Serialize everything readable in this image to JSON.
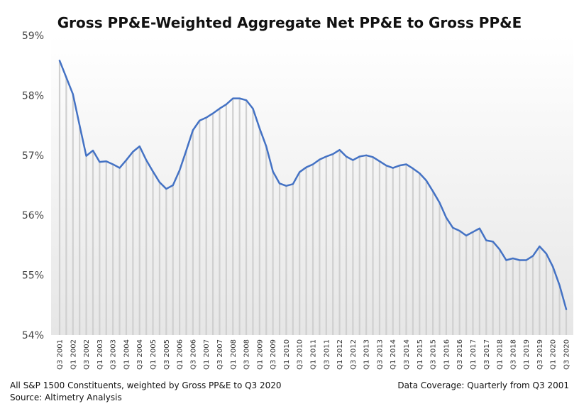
{
  "chart_data": {
    "type": "line",
    "title": "Gross PP&E-Weighted Aggregate Net PP&E to Gross PP&E",
    "xlabel": "",
    "ylabel": "",
    "ylim": [
      54,
      59
    ],
    "yticks": [
      "54%",
      "55%",
      "56%",
      "57%",
      "58%",
      "59%"
    ],
    "ytick_values": [
      54,
      55,
      56,
      57,
      58,
      59
    ],
    "grid": false,
    "line_color": "#4472C4",
    "drop_line_color": "#d0d0d0",
    "x": [
      "Q3 2001",
      "Q4 2001",
      "Q1 2002",
      "Q2 2002",
      "Q3 2002",
      "Q4 2002",
      "Q1 2003",
      "Q2 2003",
      "Q3 2003",
      "Q4 2003",
      "Q1 2004",
      "Q2 2004",
      "Q3 2004",
      "Q4 2004",
      "Q1 2005",
      "Q2 2005",
      "Q3 2005",
      "Q4 2005",
      "Q1 2006",
      "Q2 2006",
      "Q3 2006",
      "Q4 2006",
      "Q1 2007",
      "Q2 2007",
      "Q3 2007",
      "Q4 2007",
      "Q1 2008",
      "Q2 2008",
      "Q3 2008",
      "Q4 2008",
      "Q1 2009",
      "Q2 2009",
      "Q3 2009",
      "Q4 2009",
      "Q1 2010",
      "Q2 2010",
      "Q3 2010",
      "Q4 2010",
      "Q1 2011",
      "Q2 2011",
      "Q3 2011",
      "Q4 2011",
      "Q1 2012",
      "Q2 2012",
      "Q3 2012",
      "Q4 2012",
      "Q1 2013",
      "Q2 2013",
      "Q3 2013",
      "Q4 2013",
      "Q1 2014",
      "Q2 2014",
      "Q3 2014",
      "Q4 2014",
      "Q1 2015",
      "Q2 2015",
      "Q3 2015",
      "Q4 2015",
      "Q1 2016",
      "Q2 2016",
      "Q3 2016",
      "Q4 2016",
      "Q1 2017",
      "Q2 2017",
      "Q3 2017",
      "Q4 2017",
      "Q1 2018",
      "Q2 2018",
      "Q3 2018",
      "Q4 2018",
      "Q1 2019",
      "Q2 2019",
      "Q3 2019",
      "Q4 2019",
      "Q1 2020",
      "Q2 2020",
      "Q3 2020"
    ],
    "x_tick_labels": [
      "Q3 2001",
      "Q1 2002",
      "Q3 2002",
      "Q1 2003",
      "Q3 2003",
      "Q1 2004",
      "Q3 2004",
      "Q1 2005",
      "Q3 2005",
      "Q1 2006",
      "Q3 2006",
      "Q1 2007",
      "Q3 2007",
      "Q1 2008",
      "Q3 2008",
      "Q1 2009",
      "Q3 2009",
      "Q1 2010",
      "Q3 2010",
      "Q1 2011",
      "Q3 2011",
      "Q1 2012",
      "Q3 2012",
      "Q1 2013",
      "Q3 2013",
      "Q1 2014",
      "Q3 2014",
      "Q1 2015",
      "Q3 2015",
      "Q1 2016",
      "Q3 2016",
      "Q1 2017",
      "Q3 2017",
      "Q1 2018",
      "Q3 2018",
      "Q1 2019",
      "Q3 2019",
      "Q1 2020",
      "Q3 2020"
    ],
    "series": [
      {
        "name": "",
        "values": [
          58.58,
          58.3,
          58.02,
          57.5,
          56.99,
          57.08,
          56.89,
          56.9,
          56.85,
          56.79,
          56.92,
          57.06,
          57.15,
          56.92,
          56.73,
          56.55,
          56.44,
          56.5,
          56.75,
          57.08,
          57.42,
          57.58,
          57.63,
          57.7,
          57.78,
          57.85,
          57.95,
          57.95,
          57.92,
          57.78,
          57.45,
          57.15,
          56.73,
          56.53,
          56.49,
          56.52,
          56.72,
          56.8,
          56.85,
          56.93,
          56.98,
          57.02,
          57.09,
          56.98,
          56.92,
          56.98,
          57.0,
          56.97,
          56.9,
          56.83,
          56.79,
          56.83,
          56.85,
          56.78,
          56.7,
          56.58,
          56.4,
          56.21,
          55.96,
          55.79,
          55.74,
          55.66,
          55.72,
          55.78,
          55.58,
          55.56,
          55.43,
          55.25,
          55.28,
          55.25,
          55.25,
          55.32,
          55.48,
          55.36,
          55.14,
          54.83,
          54.43
        ]
      }
    ]
  },
  "footer": {
    "note_left": "All S&P 1500  Constituents, weighted by Gross PP&E  to Q3 2020",
    "source": "Source: Altimetry Analysis",
    "note_right": "Data Coverage: Quarterly from Q3 2001"
  }
}
